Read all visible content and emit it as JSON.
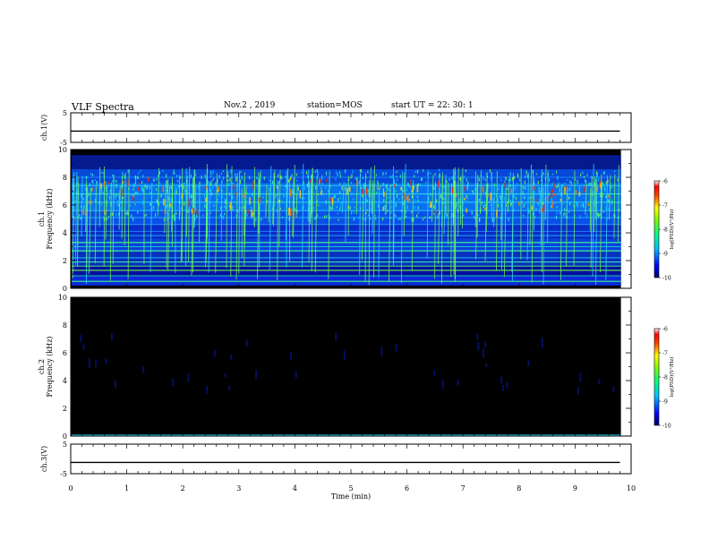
{
  "header": {
    "title": "VLF Spectra",
    "date": "Nov.2  , 2019",
    "station": "station=MOS",
    "start": "start  UT  =   22: 30: 1"
  },
  "chart_data": [
    {
      "type": "line",
      "panel": "ch.1 voltage",
      "ylabel": "ch.1(V)",
      "ylim": [
        -5,
        5
      ],
      "yticks": [
        "5",
        "-5"
      ],
      "x": [
        0,
        9.8
      ],
      "values": [
        -1.2,
        -1.2
      ]
    },
    {
      "type": "heatmap",
      "panel": "ch.1 spectrogram",
      "ylabel": "ch.1\nFrequency (kHz)",
      "ylim": [
        0,
        10
      ],
      "yticks": [
        "0",
        "2",
        "4",
        "6",
        "8",
        "10"
      ],
      "x_range": [
        0,
        9.8
      ],
      "colorbar": {
        "label": "log(PSD)(V²/Hz)",
        "ticks": [
          "-6",
          "-7",
          "-8",
          "-9",
          "-10"
        ],
        "range": [
          -10,
          -6
        ]
      },
      "notes": "broadband background ~-9, dense dispersive emissions 5-9 kHz at ~-7, horizontal lines at ~0.5,1,1.5,2,2.7,3.3,4 kHz"
    },
    {
      "type": "heatmap",
      "panel": "ch.2 spectrogram",
      "ylabel": "ch.2\nFrequency (kHz)",
      "ylim": [
        0,
        10
      ],
      "yticks": [
        "0",
        "2",
        "4",
        "6",
        "8",
        "10"
      ],
      "x_range": [
        0,
        9.8
      ],
      "colorbar": {
        "label": "log(PSD)(V²/Hz)",
        "ticks": [
          "-6",
          "-7",
          "-8",
          "-9",
          "-10"
        ],
        "range": [
          -10,
          -6
        ]
      },
      "notes": "mostly below -10 (black) with faint blue spots"
    },
    {
      "type": "line",
      "panel": "ch.3 voltage",
      "ylabel": "ch.3(V)",
      "ylim": [
        -5,
        5
      ],
      "yticks": [
        "5",
        "-5"
      ],
      "x": [
        0,
        9.8
      ],
      "values": [
        -1.2,
        -1.2
      ]
    }
  ],
  "xaxis": {
    "label": "Time  (min)",
    "range": [
      0,
      10
    ],
    "ticks": [
      "0",
      "1",
      "2",
      "3",
      "4",
      "5",
      "6",
      "7",
      "8",
      "9",
      "10"
    ]
  },
  "colors": {
    "background": "#000000",
    "trace": "#000000"
  }
}
